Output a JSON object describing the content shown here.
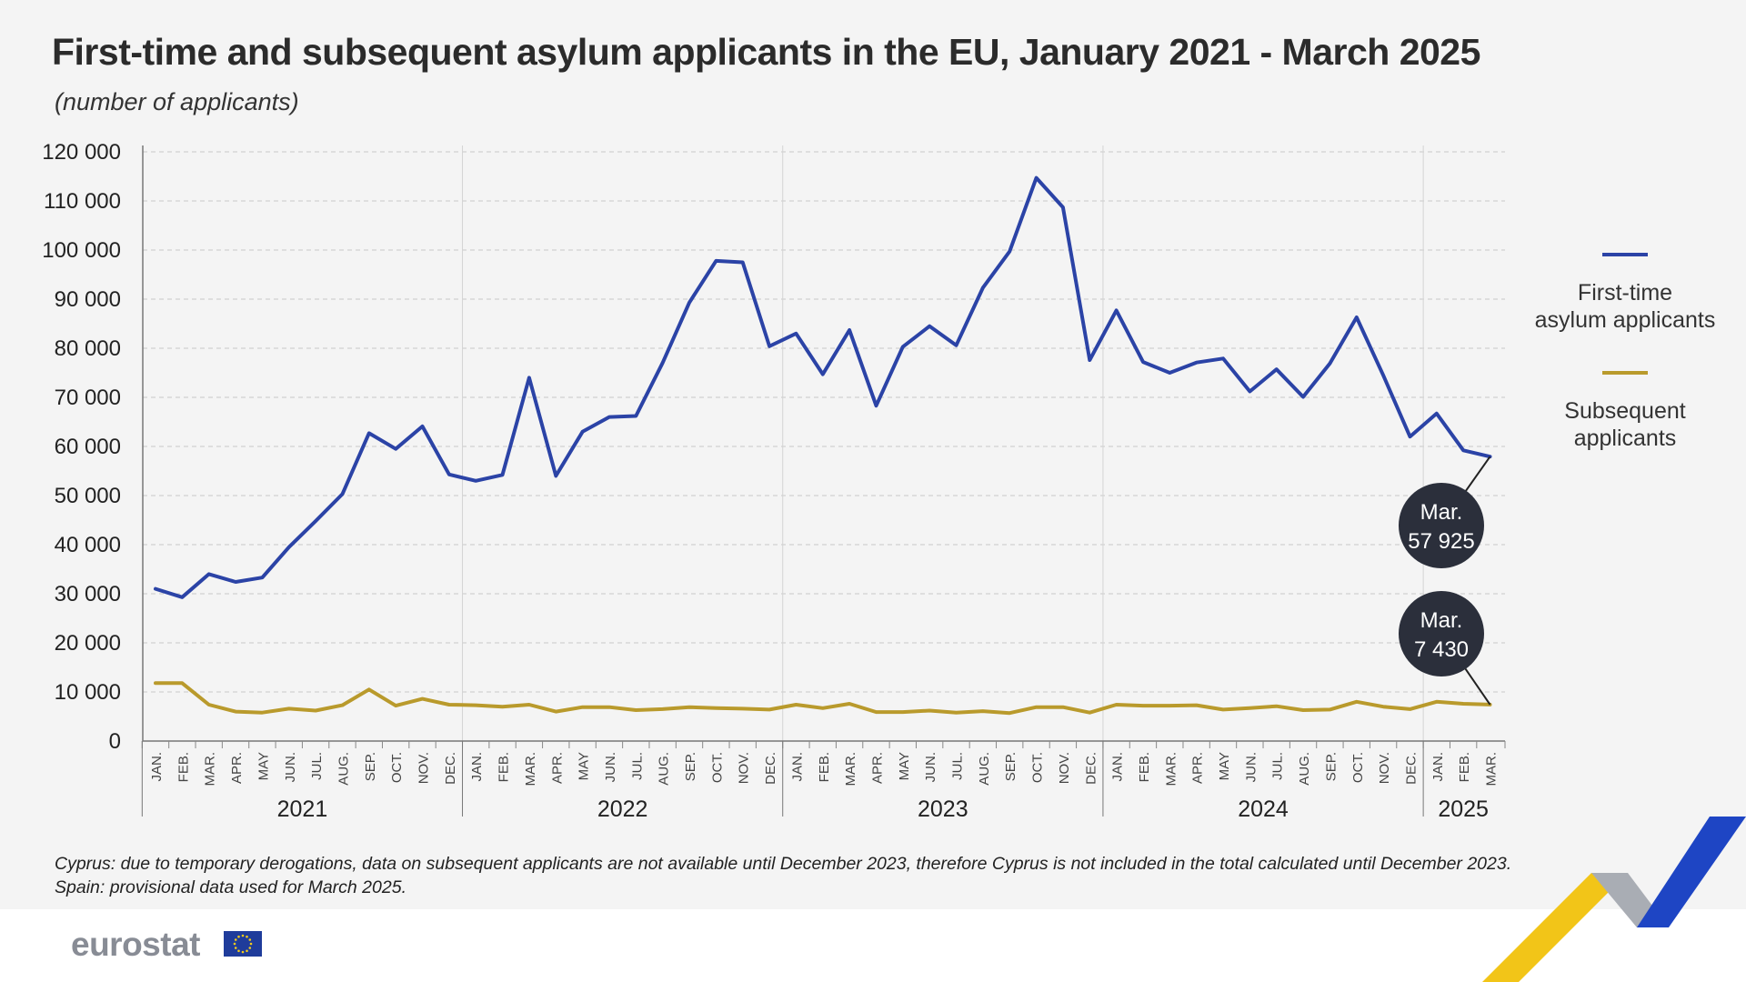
{
  "header": {
    "title": "First-time and subsequent asylum applicants in the EU, January 2021 - March 2025",
    "subtitle": "(number of applicants)"
  },
  "footer": {
    "notes": [
      "Cyprus: due to temporary derogations, data on subsequent applicants are not available until December 2023, therefore Cyprus is not included in the total calculated until December 2023.",
      "Spain: provisional data used for March 2025."
    ],
    "logo_text": "eurostat"
  },
  "colors": {
    "first_time": "#2b43a6",
    "subsequent": "#b99a2c",
    "callout": "#2b2f3b",
    "grid": "#c9c9c9"
  },
  "chart_data": {
    "type": "line",
    "title": "First-time and subsequent asylum applicants in the EU, January 2021 - March 2025",
    "ylabel": "(number of applicants)",
    "ylim": [
      0,
      120000
    ],
    "y_ticks": [
      0,
      10000,
      20000,
      30000,
      40000,
      50000,
      60000,
      70000,
      80000,
      90000,
      100000,
      110000,
      120000
    ],
    "y_tick_labels": [
      "0",
      "10 000",
      "20 000",
      "30 000",
      "40 000",
      "50 000",
      "60 000",
      "70 000",
      "80 000",
      "90 000",
      "100 000",
      "110 000",
      "120 000"
    ],
    "month_labels": [
      "JAN.",
      "FEB.",
      "MAR.",
      "APR.",
      "MAY",
      "JUN.",
      "JUL.",
      "AUG.",
      "SEP.",
      "OCT.",
      "NOV.",
      "DEC."
    ],
    "years": [
      {
        "label": "2021",
        "months": 12
      },
      {
        "label": "2022",
        "months": 12
      },
      {
        "label": "2023",
        "months": 12
      },
      {
        "label": "2024",
        "months": 12
      },
      {
        "label": "2025",
        "months": 3
      }
    ],
    "legend": [
      "First-time asylum applicants",
      "Subsequent applicants"
    ],
    "legend_position": "right",
    "grid": true,
    "series": [
      {
        "name": "First-time asylum applicants",
        "values": [
          31000,
          29300,
          34000,
          32400,
          33300,
          39500,
          44800,
          50300,
          62700,
          59500,
          64100,
          54300,
          53000,
          54200,
          74000,
          54000,
          63000,
          66000,
          66200,
          77000,
          89300,
          97800,
          97500,
          80400,
          83000,
          74700,
          83700,
          68300,
          80300,
          84500,
          80600,
          92300,
          99700,
          114700,
          108700,
          77600,
          87700,
          77200,
          75000,
          77100,
          77900,
          71200,
          75700,
          70100,
          76900,
          86300,
          74500,
          62000,
          66700,
          59200,
          57925
        ]
      },
      {
        "name": "Subsequent applicants",
        "values": [
          11800,
          11800,
          7400,
          6000,
          5800,
          6600,
          6200,
          7300,
          10500,
          7200,
          8600,
          7400,
          7300,
          7000,
          7400,
          6000,
          6900,
          6900,
          6300,
          6500,
          6900,
          6700,
          6600,
          6400,
          7400,
          6700,
          7600,
          5900,
          5900,
          6200,
          5800,
          6100,
          5700,
          6900,
          6900,
          5800,
          7400,
          7200,
          7200,
          7300,
          6400,
          6700,
          7100,
          6300,
          6400,
          8000,
          7000,
          6500,
          8000,
          7600,
          7430
        ]
      }
    ],
    "annotations": [
      {
        "series": "First-time asylum applicants",
        "line1": "Mar.",
        "line2": "57 925"
      },
      {
        "series": "Subsequent applicants",
        "line1": "Mar.",
        "line2": "7 430"
      }
    ]
  }
}
